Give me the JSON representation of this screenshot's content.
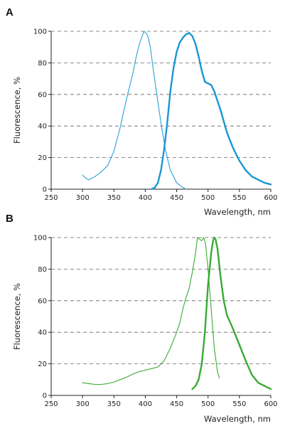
{
  "chart_data": [
    {
      "panel": "A",
      "type": "line",
      "xlabel": "Wavelength, nm",
      "ylabel": "Fluorescence, %",
      "xlim": [
        250,
        600
      ],
      "ylim": [
        0,
        100
      ],
      "xticks": [
        "250",
        "300",
        "350",
        "400",
        "450",
        "500",
        "550",
        "600"
      ],
      "yticks": [
        "0",
        "20",
        "40",
        "60",
        "80",
        "100"
      ],
      "grid": "horizontal dashed",
      "series": [
        {
          "role": "excitation",
          "color": "#2a9fd6",
          "style": "thin",
          "x": [
            300,
            305,
            310,
            315,
            320,
            330,
            340,
            350,
            360,
            370,
            380,
            385,
            390,
            395,
            398,
            401,
            404,
            408,
            412,
            418,
            425,
            432,
            440,
            450,
            460,
            465
          ],
          "y": [
            9,
            7,
            6,
            7,
            8,
            11,
            15,
            24,
            39,
            57,
            73,
            83,
            91,
            97,
            100,
            99,
            97,
            90,
            78,
            61,
            42,
            25,
            12,
            4,
            1,
            0
          ]
        },
        {
          "role": "emission",
          "color": "#1a96d4",
          "style": "thick",
          "x": [
            410,
            415,
            420,
            425,
            430,
            435,
            440,
            445,
            450,
            455,
            460,
            465,
            470,
            475,
            480,
            485,
            490,
            495,
            500,
            505,
            510,
            520,
            530,
            540,
            550,
            560,
            570,
            580,
            590,
            600
          ],
          "y": [
            0,
            1,
            4,
            12,
            25,
            42,
            62,
            77,
            87,
            93,
            96,
            98,
            99,
            97,
            92,
            84,
            75,
            68,
            67,
            66,
            62,
            50,
            36,
            26,
            18,
            12,
            8,
            6,
            4,
            3
          ]
        }
      ]
    },
    {
      "panel": "B",
      "type": "line",
      "xlabel": "Wavelength, nm",
      "ylabel": "Fluorescence, %",
      "xlim": [
        250,
        600
      ],
      "ylim": [
        0,
        100
      ],
      "xticks": [
        "250",
        "300",
        "350",
        "400",
        "450",
        "500",
        "550",
        "600"
      ],
      "yticks": [
        "0",
        "20",
        "40",
        "60",
        "80",
        "100"
      ],
      "grid": "horizontal dashed",
      "series": [
        {
          "role": "excitation",
          "color": "#3aaa35",
          "style": "thin",
          "x": [
            300,
            310,
            320,
            330,
            340,
            350,
            360,
            370,
            380,
            390,
            400,
            410,
            420,
            430,
            440,
            450,
            455,
            460,
            465,
            470,
            475,
            480,
            483,
            486,
            490,
            493,
            496,
            500,
            505,
            510,
            515,
            518
          ],
          "y": [
            8,
            7.5,
            7,
            7,
            7.5,
            8.5,
            10,
            11.5,
            13.5,
            15,
            16,
            17,
            18,
            22,
            30,
            40,
            46,
            55,
            62,
            68,
            78,
            90,
            100,
            99,
            98,
            100,
            96,
            80,
            55,
            30,
            15,
            11
          ]
        },
        {
          "role": "emission",
          "color": "#3aaa35",
          "style": "thick",
          "x": [
            475,
            480,
            485,
            490,
            495,
            500,
            505,
            508,
            510,
            512,
            515,
            520,
            525,
            530,
            540,
            550,
            560,
            570,
            580,
            590,
            600
          ],
          "y": [
            4,
            6,
            10,
            20,
            40,
            70,
            90,
            98,
            100,
            99,
            93,
            75,
            60,
            51,
            42,
            32,
            22,
            13,
            8,
            6,
            4
          ]
        }
      ]
    }
  ]
}
